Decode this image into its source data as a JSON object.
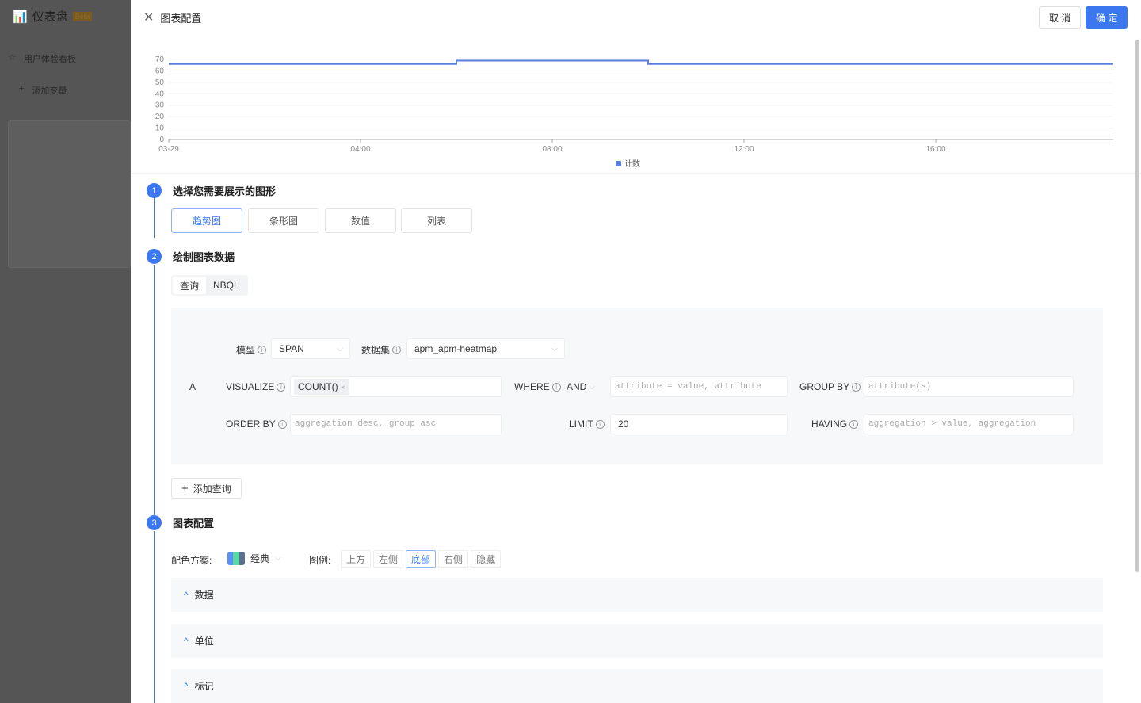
{
  "sidebar": {
    "title": "仪表盘",
    "badge": "Beta",
    "items": [
      {
        "label": "用户体验看板",
        "icon": "star-icon"
      },
      {
        "label": "添加变量",
        "icon": "plus-icon"
      }
    ]
  },
  "header": {
    "title": "图表配置",
    "cancel": "取 消",
    "confirm": "确 定"
  },
  "chart_data": {
    "type": "line",
    "y_ticks": [
      0,
      10,
      20,
      30,
      40,
      50,
      60,
      70
    ],
    "ylim": [
      0,
      70
    ],
    "x_ticks": [
      "03-29",
      "04:00",
      "08:00",
      "12:00",
      "16:00"
    ],
    "xlim_hours": [
      0,
      19.7
    ],
    "grid": true,
    "legend_position": "bottom",
    "color": "#5b7fe0",
    "series": [
      {
        "name": "计数",
        "x_hours": [
          0,
          6,
          6,
          10,
          10,
          19.7
        ],
        "values": [
          66,
          66,
          69,
          69,
          66,
          66
        ]
      }
    ]
  },
  "step1": {
    "num": "1",
    "title": "选择您需要展示的图形",
    "types": [
      "趋势图",
      "条形图",
      "数值",
      "列表"
    ],
    "selected": 0
  },
  "step2": {
    "num": "2",
    "title": "绘制图表数据",
    "tabs": [
      "查询",
      "NBQL"
    ],
    "query": {
      "id": "A",
      "model_label": "模型",
      "model": "SPAN",
      "dataset_label": "数据集",
      "dataset": "apm_apm-heatmap",
      "visualize_label": "VISUALIZE",
      "visualize_tag": "COUNT()",
      "where_label": "WHERE",
      "where_op": "AND",
      "where_placeholder": "attribute = value, attribute",
      "groupby_label": "GROUP BY",
      "groupby_placeholder": "attribute(s)",
      "orderby_label": "ORDER BY",
      "orderby_placeholder": "aggregation desc, group asc",
      "limit_label": "LIMIT",
      "limit": "20",
      "having_label": "HAVING",
      "having_placeholder": "aggregation > value, aggregation"
    },
    "add_query": "添加查询"
  },
  "step3": {
    "num": "3",
    "title": "图表配置",
    "scheme_label": "配色方案:",
    "scheme": "经典",
    "legend_label": "图例:",
    "legend_options": [
      "上方",
      "左侧",
      "底部",
      "右侧",
      "隐藏"
    ],
    "legend_selected": 2,
    "sections": [
      "数据",
      "单位",
      "标记"
    ]
  }
}
